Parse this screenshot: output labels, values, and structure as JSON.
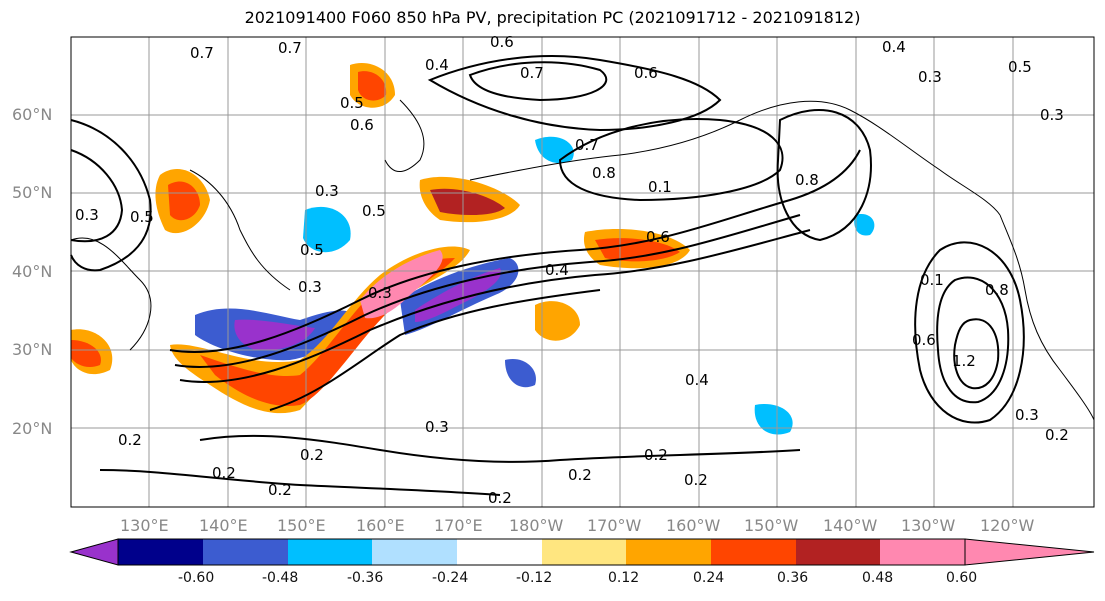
{
  "title": "2021091400 F060 850 hPa PV, precipitation PC (2021091712 - 2021091812)",
  "lat_labels": [
    "60°N",
    "50°N",
    "40°N",
    "30°N",
    "20°N"
  ],
  "lon_labels": [
    "130°E",
    "140°E",
    "150°E",
    "160°E",
    "170°E",
    "180°W",
    "170°W",
    "160°W",
    "150°W",
    "140°W",
    "130°W",
    "120°W"
  ],
  "colorbar": {
    "tick_labels": [
      "-0.60",
      "-0.48",
      "-0.36",
      "-0.24",
      "-0.12",
      "0.12",
      "0.24",
      "0.36",
      "0.48",
      "0.60"
    ],
    "colors": [
      "#9932cc",
      "#00008b",
      "#3c5cd0",
      "#00bfff",
      "#b0e0ff",
      "#ffffff",
      "#ffe680",
      "#ffa500",
      "#ff4500",
      "#b22222",
      "#ff88b0"
    ]
  },
  "contour_labels": [
    "0.7",
    "0.4",
    "0.6",
    "0.7",
    "0.6",
    "0.4",
    "0.3",
    "0.5",
    "0.3",
    "0.5",
    "0.6",
    "0.7",
    "0.8",
    "0.1",
    "0.8",
    "0.3",
    "0.5",
    "0.3",
    "0.5",
    "0.6",
    "0.4",
    "0.3",
    "0.2",
    "0.5",
    "0.4",
    "0.2",
    "0.2",
    "0.3",
    "0.2",
    "0.2",
    "0.2",
    "0.2",
    "0.3",
    "0.6",
    "1.2",
    "0.8",
    "0.2",
    "0.3",
    "0.2",
    "0.1",
    "0.7"
  ]
}
